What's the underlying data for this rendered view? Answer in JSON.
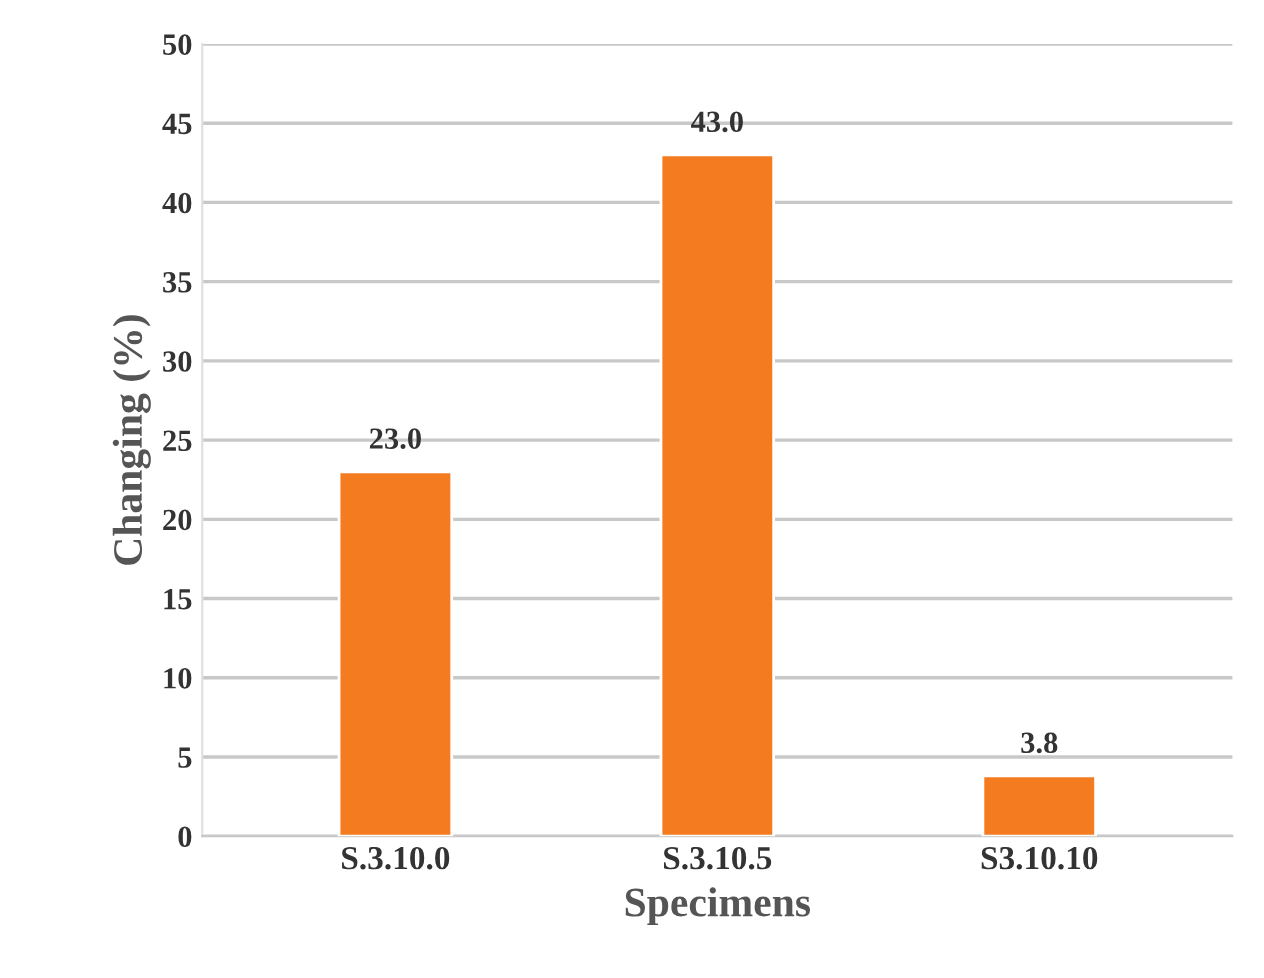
{
  "chart_data": {
    "type": "bar",
    "xlabel": "Specimens",
    "ylabel": "Changing (%)",
    "categories": [
      "S.3.10.0",
      "S.3.10.5",
      "S3.10.10"
    ],
    "values": [
      23.0,
      43.0,
      3.8
    ],
    "value_labels": [
      "23.0",
      "43.0",
      "3.8"
    ],
    "color": "#f47b20",
    "ylim": [
      0,
      50
    ],
    "yticks": [
      0,
      5,
      10,
      15,
      20,
      25,
      30,
      35,
      40,
      45,
      50
    ],
    "grid": "y",
    "legend": false
  }
}
